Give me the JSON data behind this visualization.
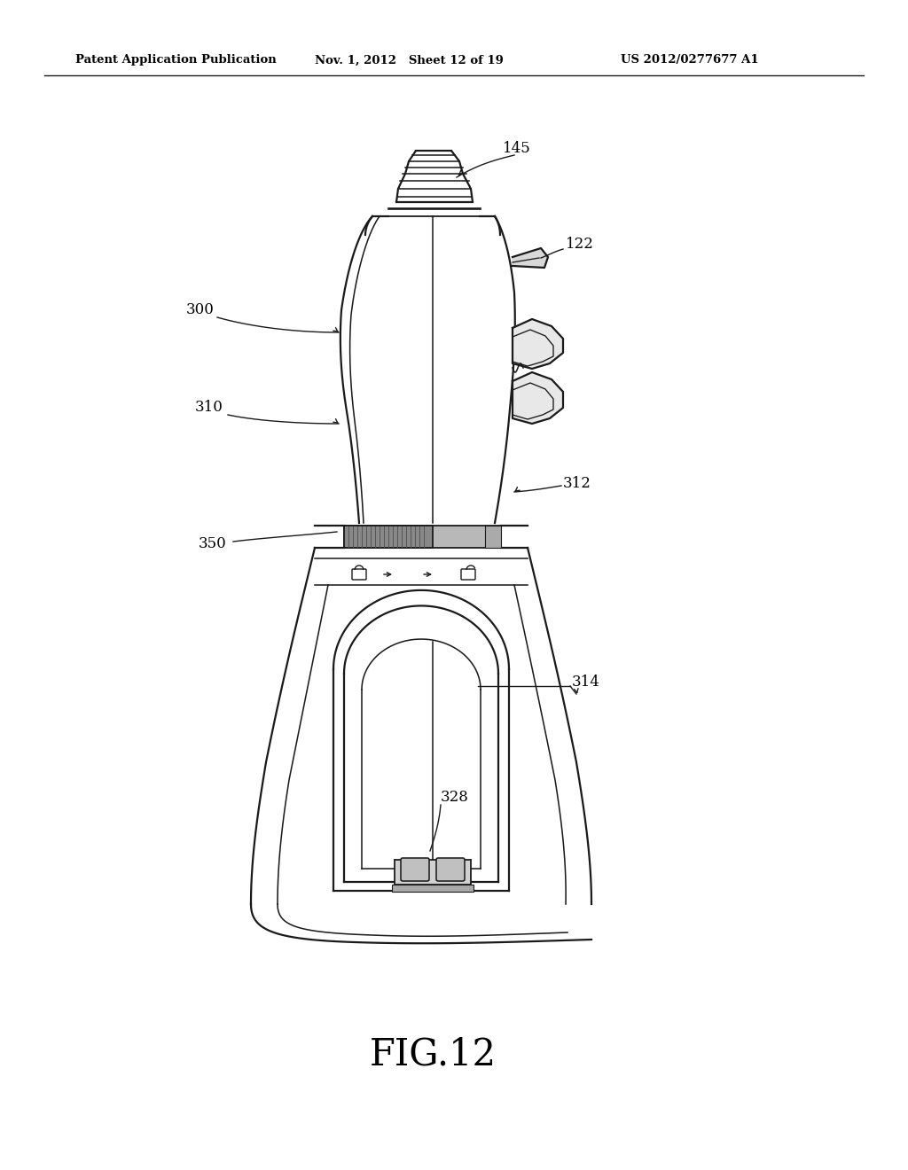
{
  "bg_color": "#ffffff",
  "header_left": "Patent Application Publication",
  "header_mid": "Nov. 1, 2012   Sheet 12 of 19",
  "header_right": "US 2012/0277677 A1",
  "figure_label": "FIG.12",
  "line_color": "#1a1a1a",
  "lw": 1.6
}
